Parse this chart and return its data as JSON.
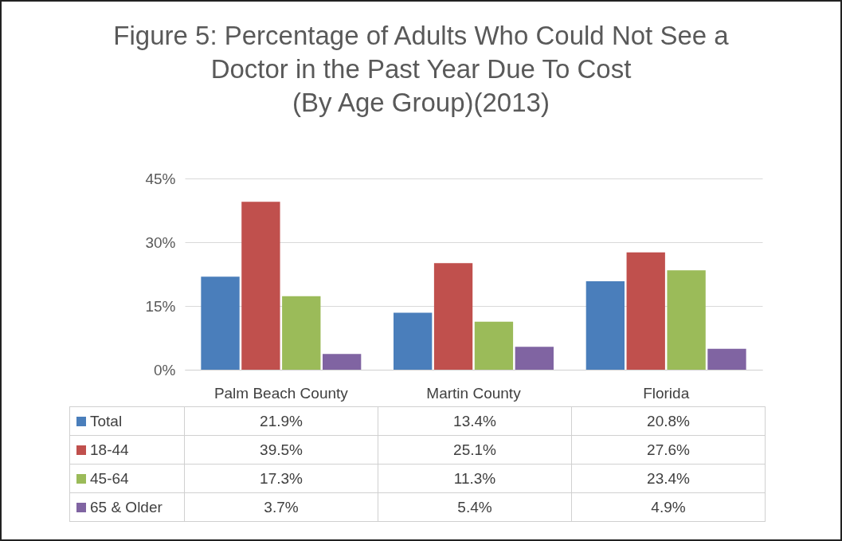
{
  "chart_data": {
    "type": "bar",
    "title": "Figure 5: Percentage of Adults Who Could Not See a\nDoctor in the Past Year Due To Cost\n(By Age Group)(2013)",
    "categories": [
      "Palm Beach County",
      "Martin County",
      "Florida"
    ],
    "series": [
      {
        "name": "Total",
        "color": "#4a7ebb",
        "values": [
          21.9,
          13.4,
          20.8
        ],
        "value_labels": [
          "21.9%",
          "13.4%",
          "20.8%"
        ]
      },
      {
        "name": "18-44",
        "color": "#c0504d",
        "values": [
          39.5,
          25.1,
          27.6
        ],
        "value_labels": [
          "39.5%",
          "25.1%",
          "27.6%"
        ]
      },
      {
        "name": "45-64",
        "color": "#9bbb59",
        "values": [
          17.3,
          11.3,
          23.4
        ],
        "value_labels": [
          "17.3%",
          "11.3%",
          "23.4%"
        ]
      },
      {
        "name": "65 & Older",
        "color": "#8064a2",
        "values": [
          3.7,
          5.4,
          4.9
        ],
        "value_labels": [
          "3.7%",
          "5.4%",
          "4.9%"
        ]
      }
    ],
    "ylim": [
      0,
      45
    ],
    "yticks": [
      {
        "value": 0,
        "label": "0%"
      },
      {
        "value": 15,
        "label": "15%"
      },
      {
        "value": 30,
        "label": "30%"
      },
      {
        "value": 45,
        "label": "45%"
      }
    ],
    "grid": "y",
    "legend": "bottom"
  }
}
